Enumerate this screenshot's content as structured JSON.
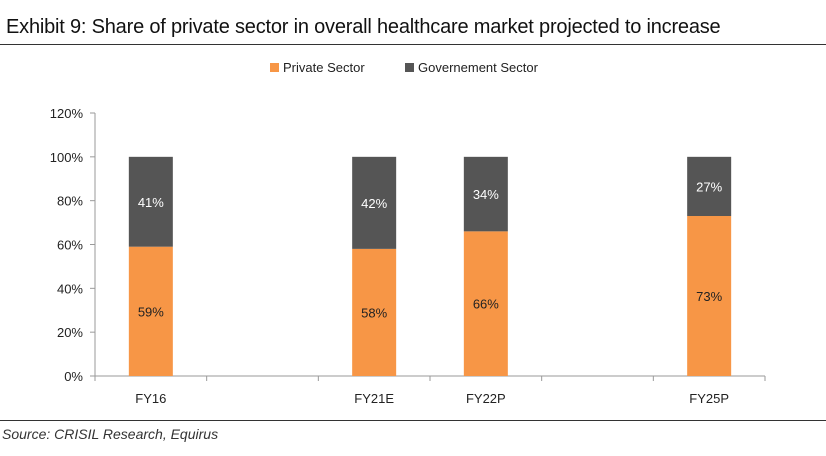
{
  "title": "Exhibit 9: Share of private sector in overall healthcare market projected to increase",
  "source": "Source: CRISIL Research, Equirus",
  "chart_data": {
    "type": "bar",
    "stacked": true,
    "categories": [
      "FY16",
      "",
      "FY21E",
      "FY22P",
      "",
      "FY25P"
    ],
    "series": [
      {
        "name": "Private Sector",
        "values": [
          59,
          null,
          58,
          66,
          null,
          73
        ],
        "labels": [
          "59%",
          "",
          "58%",
          "66%",
          "",
          "73%"
        ],
        "color": "#F79646"
      },
      {
        "name": "Governement Sector",
        "values": [
          41,
          null,
          42,
          34,
          null,
          27
        ],
        "labels": [
          "41%",
          "",
          "42%",
          "34%",
          "",
          "27%"
        ],
        "color": "#555555"
      }
    ],
    "yticks": [
      "0%",
      "20%",
      "40%",
      "60%",
      "80%",
      "100%",
      "120%"
    ],
    "ylim": [
      0,
      120
    ],
    "legend_position": "top-center",
    "grid": false
  }
}
